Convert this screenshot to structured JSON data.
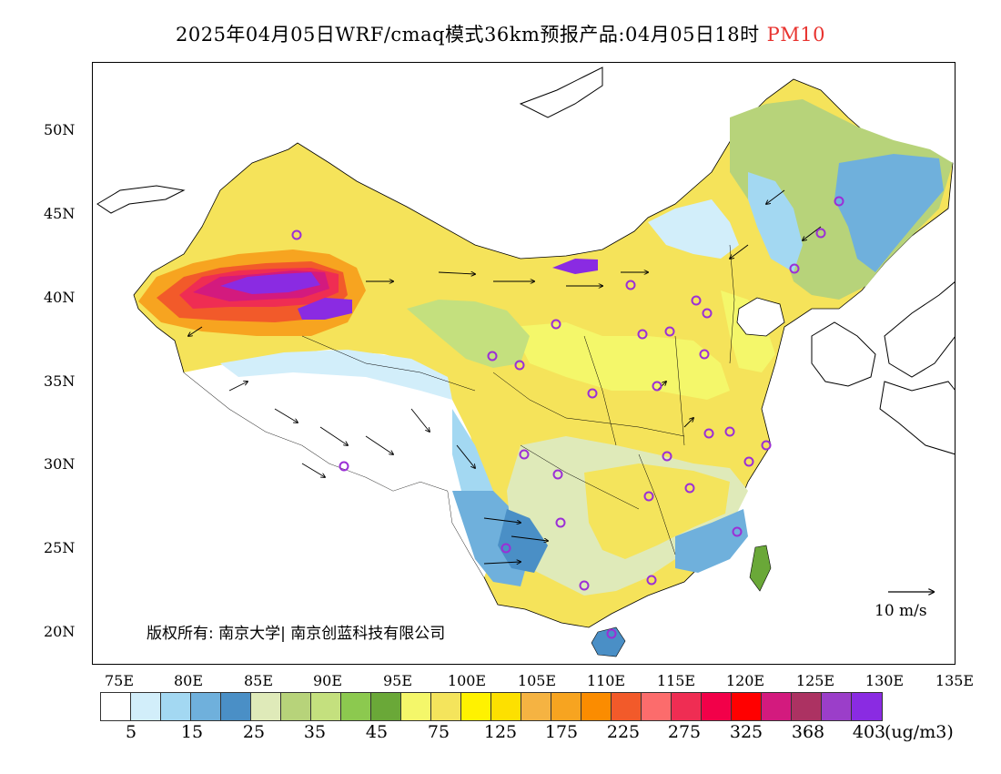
{
  "title": {
    "main": "2025年04月05日WRF/cmaq模式36km预报产品:04月05日18时",
    "pollutant": "PM10"
  },
  "map": {
    "lat_labels": [
      "50N",
      "45N",
      "40N",
      "35N",
      "30N",
      "25N",
      "20N"
    ],
    "lon_labels": [
      "75E",
      "80E",
      "85E",
      "90E",
      "95E",
      "100E",
      "105E",
      "110E",
      "115E",
      "120E",
      "125E",
      "130E",
      "135E"
    ],
    "copyright": "版权所有: 南京大学| 南京创蓝科技有限公司",
    "wind_legend_label": "10 m/s",
    "city_marker_color": "#9b2fd6"
  },
  "colorbar": {
    "colors": [
      "#ffffff",
      "#d2eefa",
      "#a3d8f2",
      "#6fb0dc",
      "#4a8fc6",
      "#dfeab9",
      "#b7d37a",
      "#c4e07e",
      "#8cc94f",
      "#6aa838",
      "#f4f76a",
      "#f4e45c",
      "#fff200",
      "#fde000",
      "#f5b342",
      "#f7a420",
      "#fb8c00",
      "#f25a2a",
      "#fc6c6c",
      "#ef2d53",
      "#f20049",
      "#ff0000",
      "#d31a7e",
      "#ac3262",
      "#9b3ec9",
      "#8a2be2"
    ],
    "labels": [
      "5",
      "15",
      "25",
      "35",
      "45",
      "75",
      "125",
      "175",
      "225",
      "275",
      "325",
      "368",
      "403"
    ],
    "units": "(ug/m3)"
  }
}
